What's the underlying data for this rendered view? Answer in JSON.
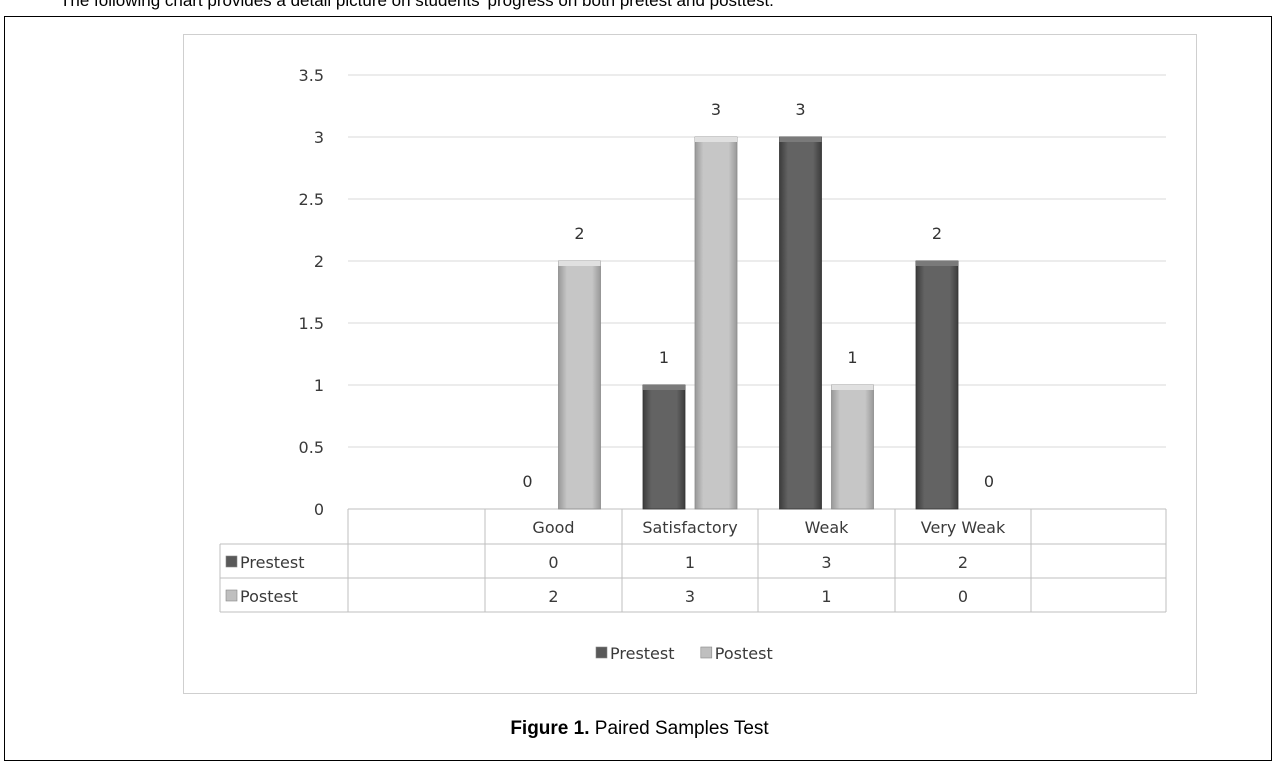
{
  "intro_text": "The following chart provides a detail picture on students' progress on both pretest and posttest.",
  "caption": {
    "prefix": "Figure 1.",
    "text": " Paired Samples Test"
  },
  "chart_data": {
    "type": "bar",
    "title": "",
    "xlabel": "",
    "ylabel": "",
    "categories": [
      "Good",
      "Satisfactory",
      "Weak",
      "Very Weak"
    ],
    "series": [
      {
        "name": "Prestest",
        "values": [
          0,
          1,
          3,
          2
        ],
        "color": "#595959"
      },
      {
        "name": "Postest",
        "values": [
          2,
          3,
          1,
          0
        ],
        "color": "#bfbfbf"
      }
    ],
    "ylim": [
      0,
      3.5
    ],
    "yticks": [
      "0",
      "0.5",
      "1",
      "1.5",
      "2",
      "2.5",
      "3",
      "3.5"
    ],
    "grid": true,
    "data_labels": true,
    "data_table": true,
    "legend": "bottom"
  }
}
